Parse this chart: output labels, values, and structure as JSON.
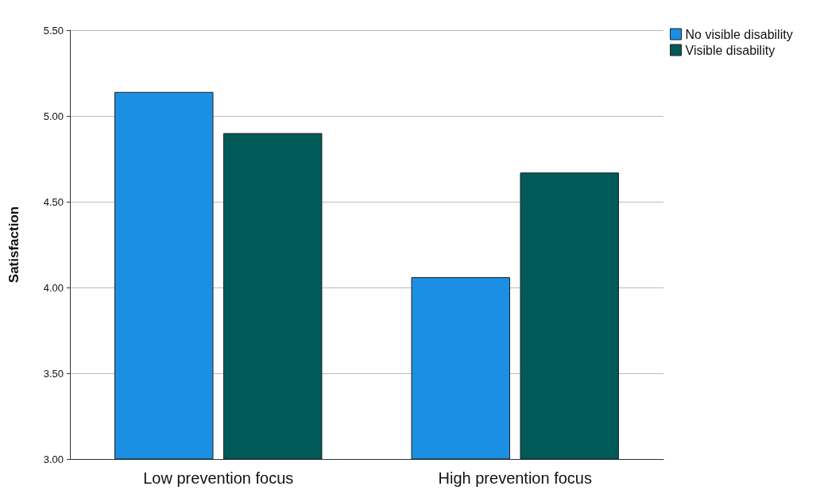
{
  "chart_data": {
    "type": "bar",
    "ylabel": "Satisfaction",
    "categories": [
      "Low prevention focus",
      "High prevention focus"
    ],
    "series": [
      {
        "name": "No visible disability",
        "color": "#1a8fe3",
        "values": [
          5.14,
          4.06
        ]
      },
      {
        "name": "Visible disability",
        "color": "#005a58",
        "values": [
          4.9,
          4.67
        ]
      }
    ],
    "ylim": [
      3,
      5.5
    ],
    "yticks": [
      {
        "value": 3,
        "label": "3.00"
      },
      {
        "value": 3.5,
        "label": "3.50"
      },
      {
        "value": 4,
        "label": "4.00"
      },
      {
        "value": 4.5,
        "label": "4.50"
      },
      {
        "value": 5,
        "label": "5.00"
      },
      {
        "value": 5.5,
        "label": "5.50"
      }
    ],
    "grid": "y",
    "legend": "top right"
  }
}
